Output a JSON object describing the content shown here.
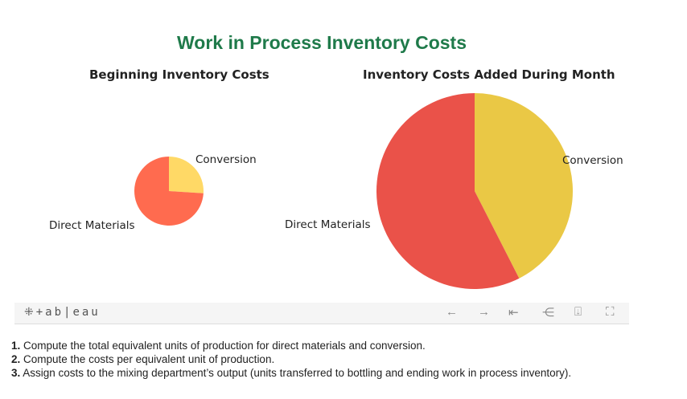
{
  "title": "Work in Process Inventory Costs",
  "chart_data": [
    {
      "type": "pie",
      "title": "Beginning Inventory Costs",
      "categories": [
        "Conversion",
        "Direct Materials"
      ],
      "values": [
        26,
        74
      ],
      "colors": [
        "#ffd966",
        "#ff6b4f"
      ]
    },
    {
      "type": "pie",
      "title": "Inventory Costs Added During Month",
      "categories": [
        "Conversion",
        "Direct Materials"
      ],
      "values": [
        42.5,
        57.5
      ],
      "colors": [
        "#eac845",
        "#ea5249"
      ]
    }
  ],
  "toolbar": {
    "logo": "+ab|eau",
    "icons": [
      "undo-icon",
      "redo-icon",
      "revert-icon",
      "share-icon",
      "download-icon",
      "fullscreen-icon"
    ]
  },
  "steps": [
    {
      "num": "1.",
      "text": " Compute the total equivalent units of production for direct materials and conversion."
    },
    {
      "num": "2.",
      "text": " Compute the costs per equivalent unit of production."
    },
    {
      "num": "3.",
      "text": " Assign costs to the mixing department’s output (units transferred to bottling and ending work in process inventory)."
    }
  ]
}
